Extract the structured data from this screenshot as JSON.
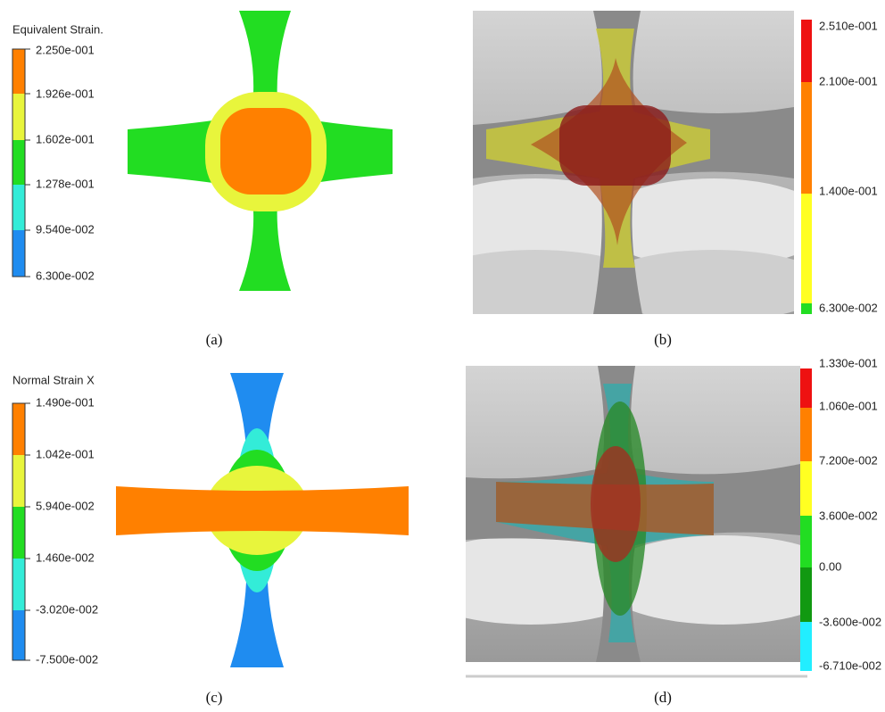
{
  "panels": [
    {
      "caption": "(a)",
      "legend_title": "Equivalent Strain.",
      "legend_labels": [
        "2.250e-001",
        "1.926e-001",
        "1.602e-001",
        "1.278e-001",
        "9.540e-002",
        "6.300e-002"
      ],
      "legend_colors": [
        "#ff8000",
        "#e8f53c",
        "#22dd22",
        "#33ecd8",
        "#1f8cf0"
      ]
    },
    {
      "caption": "(b)",
      "legend_labels": [
        "2.510e-001",
        "2.100e-001",
        "1.400e-001",
        "6.300e-002"
      ],
      "legend_colors": [
        "#ee1111",
        "#ff8000",
        "#ffff22"
      ]
    },
    {
      "caption": "(c)",
      "legend_title": "Normal Strain X",
      "legend_labels": [
        "1.490e-001",
        "1.042e-001",
        "5.940e-002",
        "1.460e-002",
        "-3.020e-002",
        "-7.500e-002"
      ],
      "legend_colors": [
        "#ff8000",
        "#e8f53c",
        "#22dd22",
        "#33ecd8",
        "#1f8cf0"
      ]
    },
    {
      "caption": "(d)",
      "legend_labels": [
        "1.330e-001",
        "1.060e-001",
        "7.200e-002",
        "3.600e-002",
        "0.00",
        "-3.600e-002",
        "-6.710e-002"
      ],
      "legend_colors": [
        "#ee1111",
        "#ff8000",
        "#ffff22",
        "#22dd22",
        "#119911",
        "#22eeff"
      ]
    }
  ]
}
